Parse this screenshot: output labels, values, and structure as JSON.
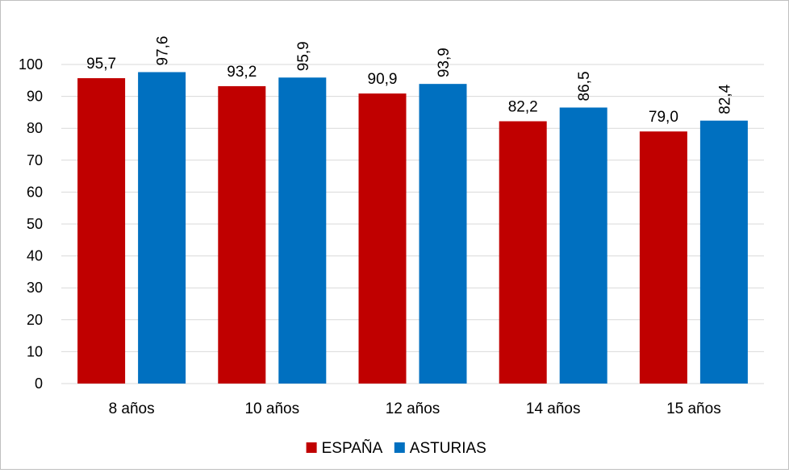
{
  "chart_data": {
    "type": "bar",
    "title": "",
    "xlabel": "",
    "ylabel": "",
    "categories": [
      "8 años",
      "10 años",
      "12 años",
      "14 años",
      "15 años"
    ],
    "series": [
      {
        "name": "ESPAÑA",
        "color": "#c00000",
        "values": [
          95.7,
          93.2,
          90.9,
          82.2,
          79.0
        ],
        "labels": [
          "95,7",
          "93,2",
          "90,9",
          "82,2",
          "79,0"
        ]
      },
      {
        "name": "ASTURIAS",
        "color": "#0070c0",
        "values": [
          97.6,
          95.9,
          93.9,
          86.5,
          82.4
        ],
        "labels": [
          "97,6",
          "95,9",
          "93,9",
          "86,5",
          "82,4"
        ]
      }
    ],
    "ylim": [
      0,
      100
    ],
    "yticks": [
      0,
      10,
      20,
      30,
      40,
      50,
      60,
      70,
      80,
      90,
      100
    ],
    "grid": true,
    "legend": "bottom-center"
  }
}
